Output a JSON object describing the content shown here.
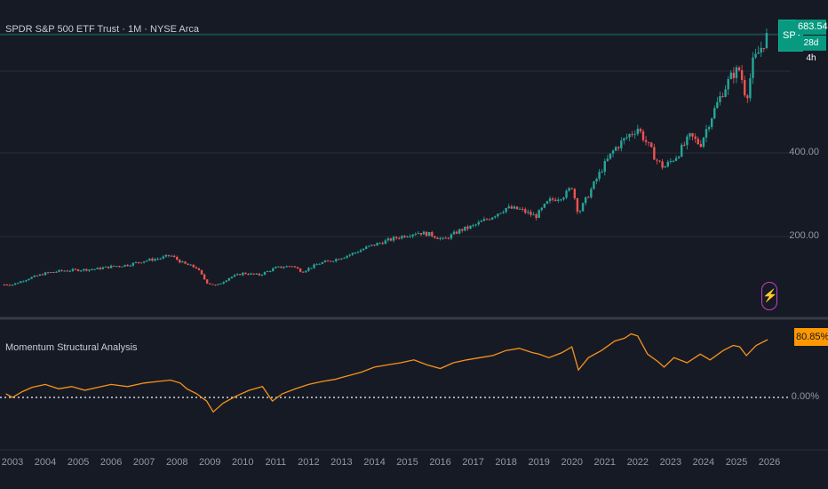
{
  "header": {
    "symbol_title": "SPDR S&P 500 ETF Trust · 1M · NYSE Arca",
    "indicator_title": "Momentum Structural Analysis"
  },
  "price_tags": {
    "symbol": "SPY",
    "last_price": "683.54",
    "countdown": "28d 4h",
    "indicator_value": "80.85%"
  },
  "price_axis": [
    "400.00",
    "200.00"
  ],
  "indicator_axis": [
    "0.00%"
  ],
  "colors": {
    "background": "#161a25",
    "up": "#26a69a",
    "down": "#ef5350",
    "indicator_line": "#f7931a",
    "tag_green": "#089981",
    "tag_orange": "#ff9800"
  },
  "chart_data": [
    {
      "type": "candlestick",
      "title": "SPDR S&P 500 ETF Trust · 1M · NYSE Arca",
      "x_ticks": [
        "2003",
        "2004",
        "2005",
        "2006",
        "2007",
        "2008",
        "2009",
        "2010",
        "2011",
        "2012",
        "2013",
        "2014",
        "2015",
        "2016",
        "2017",
        "2018",
        "2019",
        "2020",
        "2021",
        "2022",
        "2023",
        "2024",
        "2025",
        "2026"
      ],
      "ylim": [
        0,
        720
      ],
      "y_ticks": [
        200,
        400
      ],
      "x": [
        2003.0,
        2003.5,
        2004.0,
        2004.5,
        2005.0,
        2005.5,
        2006.0,
        2006.5,
        2007.0,
        2007.5,
        2007.8,
        2008.2,
        2008.6,
        2008.9,
        2009.2,
        2009.6,
        2010.0,
        2010.5,
        2011.0,
        2011.5,
        2011.8,
        2012.3,
        2012.8,
        2013.3,
        2013.8,
        2014.3,
        2014.8,
        2015.3,
        2015.7,
        2016.1,
        2016.6,
        2017.0,
        2017.5,
        2018.0,
        2018.4,
        2018.9,
        2019.3,
        2019.8,
        2020.0,
        2020.2,
        2020.5,
        2020.9,
        2021.3,
        2021.7,
        2022.0,
        2022.3,
        2022.6,
        2022.8,
        2023.2,
        2023.6,
        2023.9,
        2024.2,
        2024.6,
        2024.9,
        2025.1,
        2025.3,
        2025.5,
        2025.8,
        2025.95
      ],
      "close": [
        85,
        100,
        112,
        118,
        120,
        122,
        128,
        132,
        142,
        148,
        155,
        135,
        125,
        90,
        82,
        102,
        112,
        108,
        125,
        130,
        116,
        135,
        145,
        158,
        175,
        188,
        200,
        210,
        205,
        192,
        215,
        225,
        245,
        268,
        265,
        248,
        285,
        300,
        320,
        255,
        300,
        360,
        410,
        440,
        460,
        420,
        380,
        365,
        395,
        440,
        420,
        480,
        550,
        590,
        600,
        530,
        615,
        660,
        683
      ]
    },
    {
      "type": "line",
      "title": "Momentum Structural Analysis",
      "ylim": [
        -40,
        100
      ],
      "y_ticks": [
        0
      ],
      "x": [
        2002.8,
        2003.0,
        2003.3,
        2003.6,
        2004.0,
        2004.4,
        2004.8,
        2005.2,
        2005.6,
        2006.0,
        2006.5,
        2007.0,
        2007.4,
        2007.8,
        2008.1,
        2008.3,
        2008.6,
        2008.9,
        2009.1,
        2009.4,
        2009.8,
        2010.2,
        2010.6,
        2010.9,
        2011.2,
        2011.6,
        2012.0,
        2012.4,
        2012.8,
        2013.2,
        2013.6,
        2014.0,
        2014.4,
        2014.8,
        2015.2,
        2015.6,
        2016.0,
        2016.4,
        2016.8,
        2017.2,
        2017.6,
        2018.0,
        2018.4,
        2018.8,
        2019.0,
        2019.3,
        2019.7,
        2020.0,
        2020.2,
        2020.5,
        2020.9,
        2021.3,
        2021.6,
        2021.8,
        2022.0,
        2022.3,
        2022.6,
        2022.8,
        2023.1,
        2023.5,
        2023.9,
        2024.2,
        2024.6,
        2024.9,
        2025.1,
        2025.3,
        2025.6,
        2025.95
      ],
      "y": [
        5,
        0,
        8,
        14,
        18,
        12,
        15,
        10,
        14,
        18,
        15,
        20,
        22,
        24,
        20,
        12,
        5,
        -5,
        -20,
        -8,
        2,
        10,
        15,
        -5,
        5,
        12,
        18,
        22,
        25,
        30,
        35,
        42,
        45,
        48,
        52,
        45,
        40,
        48,
        52,
        55,
        58,
        65,
        68,
        62,
        60,
        55,
        62,
        70,
        38,
        55,
        65,
        78,
        82,
        88,
        85,
        60,
        50,
        42,
        55,
        48,
        60,
        52,
        65,
        72,
        70,
        58,
        72,
        80
      ]
    }
  ]
}
